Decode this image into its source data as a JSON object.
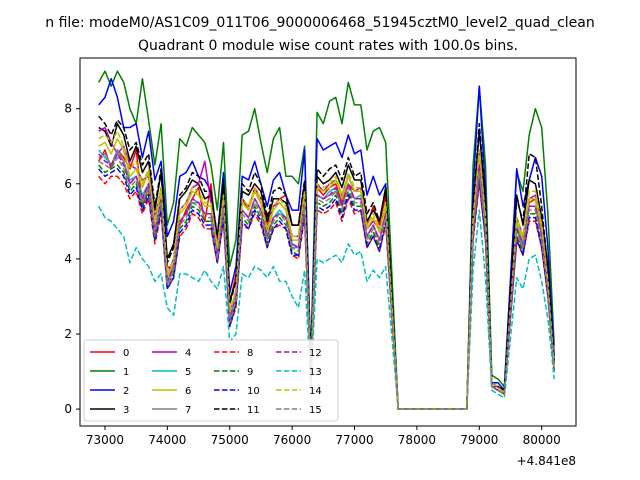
{
  "figure": {
    "suptitle": "n file: modeM0/AS1C09_011T06_9000006468_51945cztM0_level2_quad_clean",
    "offset_label": "+4.841e8"
  },
  "chart_data": {
    "type": "line",
    "title": "Quadrant 0 module wise count rates with 100.0s bins.",
    "xlabel": "",
    "ylabel": "",
    "x_offset": 484100000,
    "xlim": [
      72600,
      80550
    ],
    "ylim": [
      -0.45,
      9.35
    ],
    "x_ticks": [
      73000,
      74000,
      75000,
      76000,
      77000,
      78000,
      79000,
      80000
    ],
    "x_tick_labels": [
      "73000",
      "74000",
      "75000",
      "76000",
      "77000",
      "78000",
      "79000",
      "80000"
    ],
    "y_ticks": [
      0,
      2,
      4,
      6,
      8
    ],
    "y_tick_labels": [
      "0",
      "2",
      "4",
      "6",
      "8"
    ],
    "grid": false,
    "legend_placement": "lower-left",
    "legend_columns": 4,
    "x": [
      72900,
      73000,
      73100,
      73200,
      73300,
      73400,
      73500,
      73600,
      73700,
      73800,
      73900,
      74000,
      74100,
      74200,
      74300,
      74400,
      74500,
      74600,
      74700,
      74800,
      74900,
      75000,
      75100,
      75200,
      75300,
      75400,
      75500,
      75600,
      75700,
      75800,
      75900,
      76000,
      76100,
      76200,
      76300,
      76400,
      76500,
      76600,
      76700,
      76800,
      76900,
      77000,
      77100,
      77200,
      77300,
      77400,
      77500,
      77700,
      78800,
      78900,
      79000,
      79100,
      79200,
      79300,
      79400,
      79600,
      79700,
      79800,
      79900,
      80000,
      80100,
      80200
    ],
    "series": [
      {
        "name": "0",
        "color": "#ff0000",
        "dash": "solid",
        "values": [
          6.6,
          6.9,
          6.4,
          6.9,
          6.7,
          6.4,
          6.9,
          5.4,
          5.9,
          5.0,
          5.9,
          3.8,
          3.7,
          4.9,
          5.3,
          5.6,
          5.9,
          5.0,
          6.0,
          4.3,
          5.9,
          2.8,
          3.6,
          5.6,
          5.3,
          5.9,
          5.6,
          4.9,
          5.4,
          5.6,
          5.7,
          4.9,
          4.9,
          5.6,
          0.8,
          5.9,
          5.7,
          5.9,
          6.0,
          5.5,
          6.0,
          5.8,
          5.8,
          4.9,
          5.4,
          4.9,
          5.7,
          0.0,
          0.0,
          5.0,
          6.6,
          5.0,
          0.7,
          0.6,
          0.5,
          4.5,
          4.4,
          5.5,
          5.6,
          4.6,
          3.6,
          1.2
        ]
      },
      {
        "name": "1",
        "color": "#008000",
        "dash": "solid",
        "values": [
          8.7,
          9.0,
          8.6,
          9.0,
          8.7,
          8.0,
          7.6,
          8.8,
          7.7,
          6.5,
          7.6,
          4.9,
          5.5,
          7.2,
          7.0,
          7.5,
          7.3,
          7.1,
          6.5,
          5.3,
          7.1,
          3.8,
          4.5,
          7.3,
          7.4,
          8.0,
          7.1,
          6.3,
          7.2,
          7.5,
          6.2,
          6.2,
          6.0,
          7.0,
          1.3,
          7.9,
          7.6,
          8.2,
          8.3,
          7.6,
          8.7,
          8.1,
          8.1,
          6.9,
          7.4,
          7.5,
          7.1,
          0.0,
          0.0,
          6.5,
          8.6,
          6.5,
          0.9,
          0.8,
          0.6,
          6.3,
          5.8,
          7.3,
          8.0,
          7.5,
          5.2,
          1.7
        ]
      },
      {
        "name": "2",
        "color": "#0000ff",
        "dash": "solid",
        "values": [
          8.1,
          8.3,
          8.8,
          8.3,
          7.5,
          7.5,
          7.6,
          6.7,
          7.4,
          6.1,
          6.6,
          4.6,
          5.0,
          6.2,
          6.3,
          6.6,
          6.2,
          6.1,
          5.8,
          4.6,
          6.3,
          3.1,
          3.8,
          6.2,
          6.1,
          6.6,
          6.0,
          5.4,
          6.1,
          6.3,
          5.7,
          5.3,
          5.3,
          6.9,
          1.2,
          7.2,
          6.9,
          7.0,
          7.1,
          6.7,
          7.3,
          6.8,
          6.9,
          5.7,
          6.2,
          5.7,
          6.0,
          0.0,
          0.0,
          5.9,
          8.6,
          5.8,
          0.7,
          0.7,
          0.5,
          6.4,
          5.4,
          6.1,
          6.7,
          6.2,
          4.3,
          1.4
        ]
      },
      {
        "name": "3",
        "color": "#000000",
        "dash": "solid",
        "values": [
          7.5,
          7.4,
          7.0,
          7.6,
          7.3,
          6.6,
          7.0,
          6.3,
          6.6,
          5.3,
          6.3,
          4.0,
          4.4,
          5.6,
          5.8,
          6.1,
          6.0,
          5.6,
          5.7,
          4.5,
          6.0,
          2.9,
          3.4,
          5.8,
          5.7,
          6.0,
          5.8,
          5.0,
          5.6,
          5.6,
          5.5,
          4.9,
          4.9,
          6.0,
          1.0,
          6.2,
          6.0,
          6.1,
          6.3,
          5.9,
          6.5,
          6.1,
          6.1,
          5.0,
          5.3,
          5.0,
          5.9,
          0.0,
          0.0,
          5.4,
          7.4,
          5.5,
          0.7,
          0.6,
          0.5,
          5.7,
          4.9,
          6.1,
          6.0,
          5.1,
          3.8,
          1.2
        ]
      },
      {
        "name": "4",
        "color": "#bf00bf",
        "dash": "solid",
        "values": [
          7.4,
          7.5,
          7.1,
          6.8,
          7.0,
          6.5,
          6.4,
          6.1,
          6.2,
          5.1,
          5.8,
          3.6,
          4.0,
          5.3,
          5.5,
          5.9,
          6.0,
          6.6,
          5.5,
          4.4,
          5.5,
          2.6,
          3.1,
          5.6,
          5.4,
          5.8,
          5.5,
          4.8,
          5.4,
          5.5,
          5.3,
          4.6,
          4.6,
          5.8,
          0.9,
          6.0,
          5.8,
          6.0,
          6.1,
          5.7,
          6.2,
          5.8,
          5.9,
          4.8,
          5.0,
          4.8,
          5.4,
          0.0,
          0.0,
          5.1,
          6.8,
          5.2,
          0.7,
          0.6,
          0.4,
          5.1,
          4.6,
          5.6,
          5.7,
          4.9,
          3.4,
          1.1
        ]
      },
      {
        "name": "5",
        "color": "#00bfbf",
        "dash": "solid",
        "values": [
          6.9,
          6.7,
          6.5,
          6.8,
          6.6,
          6.1,
          6.2,
          5.7,
          6.0,
          4.7,
          5.6,
          3.4,
          3.8,
          5.0,
          5.2,
          5.6,
          5.5,
          5.2,
          5.2,
          4.1,
          5.4,
          2.3,
          3.0,
          5.3,
          5.1,
          5.6,
          5.3,
          4.6,
          5.1,
          5.3,
          5.1,
          4.4,
          4.3,
          5.5,
          0.8,
          5.7,
          5.6,
          5.8,
          5.9,
          5.4,
          6.0,
          5.6,
          5.7,
          4.6,
          4.9,
          4.5,
          5.2,
          0.0,
          0.0,
          4.8,
          6.5,
          4.8,
          0.6,
          0.6,
          0.4,
          4.9,
          4.4,
          5.4,
          5.4,
          4.6,
          3.2,
          1.0
        ]
      },
      {
        "name": "6",
        "color": "#bfbf00",
        "dash": "solid",
        "values": [
          7.0,
          7.1,
          6.8,
          7.2,
          6.9,
          6.2,
          6.4,
          5.9,
          6.3,
          4.9,
          5.8,
          3.5,
          3.9,
          5.2,
          5.4,
          5.8,
          5.7,
          5.4,
          5.4,
          4.3,
          5.6,
          2.5,
          3.1,
          5.5,
          5.3,
          5.8,
          5.5,
          4.7,
          5.3,
          5.5,
          5.3,
          4.5,
          4.5,
          5.7,
          0.9,
          5.9,
          5.8,
          5.9,
          6.1,
          5.6,
          6.2,
          5.8,
          5.8,
          4.8,
          5.1,
          4.7,
          5.4,
          0.0,
          0.0,
          5.0,
          6.7,
          5.0,
          0.7,
          0.6,
          0.4,
          5.0,
          4.5,
          5.6,
          5.6,
          4.8,
          3.3,
          1.1
        ]
      },
      {
        "name": "7",
        "color": "#808080",
        "dash": "solid",
        "values": [
          6.7,
          6.8,
          6.5,
          6.9,
          6.6,
          6.0,
          6.2,
          5.6,
          6.0,
          4.7,
          5.5,
          3.4,
          3.7,
          5.0,
          5.2,
          5.5,
          5.5,
          5.2,
          5.2,
          4.1,
          5.4,
          2.4,
          2.9,
          5.3,
          5.1,
          5.6,
          5.3,
          4.5,
          5.1,
          5.2,
          5.1,
          4.3,
          4.3,
          5.5,
          0.8,
          5.7,
          5.6,
          5.7,
          5.8,
          5.4,
          6.0,
          5.6,
          5.6,
          4.6,
          4.9,
          4.5,
          5.2,
          0.0,
          0.0,
          4.8,
          6.4,
          4.8,
          0.6,
          0.6,
          0.4,
          4.8,
          4.3,
          5.4,
          5.4,
          4.6,
          3.2,
          1.0
        ]
      },
      {
        "name": "8",
        "color": "#ff0000",
        "dash": "dashed",
        "values": [
          6.2,
          6.0,
          6.2,
          6.2,
          6.0,
          5.6,
          5.8,
          5.2,
          5.6,
          4.4,
          5.2,
          3.2,
          3.5,
          4.6,
          4.8,
          5.2,
          5.1,
          4.8,
          4.8,
          3.9,
          5.0,
          2.2,
          2.7,
          4.9,
          4.8,
          5.2,
          4.9,
          4.3,
          4.8,
          4.9,
          4.8,
          4.1,
          4.0,
          5.1,
          0.8,
          5.3,
          5.2,
          5.3,
          5.5,
          5.0,
          5.6,
          5.2,
          5.3,
          4.3,
          4.6,
          4.2,
          4.9,
          0.0,
          0.0,
          4.5,
          6.0,
          4.5,
          0.6,
          0.5,
          0.4,
          4.5,
          4.1,
          5.0,
          5.0,
          4.3,
          3.0,
          1.0
        ]
      },
      {
        "name": "9",
        "color": "#008000",
        "dash": "dashed",
        "values": [
          6.5,
          6.3,
          6.4,
          6.5,
          6.3,
          5.8,
          6.0,
          5.4,
          5.8,
          4.5,
          5.4,
          3.3,
          3.6,
          4.8,
          5.0,
          5.4,
          5.3,
          5.0,
          5.0,
          4.0,
          5.2,
          2.3,
          2.8,
          5.1,
          4.9,
          5.4,
          5.1,
          4.4,
          4.9,
          5.1,
          4.9,
          4.2,
          4.1,
          5.3,
          0.8,
          5.5,
          5.4,
          5.5,
          5.7,
          5.2,
          5.8,
          5.4,
          5.4,
          4.4,
          4.7,
          4.3,
          5.1,
          0.0,
          0.0,
          4.6,
          6.2,
          4.6,
          0.6,
          0.5,
          0.4,
          4.6,
          4.2,
          5.2,
          5.2,
          4.4,
          3.1,
          1.0
        ]
      },
      {
        "name": "10",
        "color": "#0000ff",
        "dash": "dashed",
        "values": [
          6.4,
          6.2,
          6.3,
          6.4,
          6.2,
          5.7,
          5.9,
          5.3,
          5.7,
          4.5,
          5.3,
          3.2,
          3.5,
          4.7,
          4.9,
          5.3,
          5.2,
          4.9,
          4.9,
          3.9,
          5.1,
          2.2,
          2.8,
          5.0,
          4.8,
          5.3,
          5.0,
          4.3,
          4.8,
          5.0,
          4.8,
          4.1,
          4.1,
          5.2,
          0.8,
          5.4,
          5.3,
          5.4,
          5.6,
          5.1,
          5.7,
          5.3,
          5.3,
          4.3,
          4.6,
          4.2,
          5.0,
          0.0,
          0.0,
          4.6,
          6.1,
          4.5,
          0.6,
          0.5,
          0.4,
          4.5,
          4.1,
          5.1,
          5.1,
          4.3,
          3.0,
          1.0
        ]
      },
      {
        "name": "11",
        "color": "#000000",
        "dash": "dashed",
        "values": [
          7.8,
          7.6,
          7.3,
          7.7,
          7.5,
          6.9,
          7.1,
          6.5,
          6.8,
          5.4,
          6.4,
          3.9,
          4.3,
          5.7,
          5.9,
          6.3,
          6.2,
          5.8,
          5.8,
          4.6,
          6.1,
          2.8,
          3.4,
          6.0,
          5.8,
          6.3,
          6.0,
          5.1,
          5.8,
          5.9,
          5.7,
          4.9,
          4.9,
          6.1,
          1.0,
          6.4,
          6.2,
          6.4,
          6.5,
          6.1,
          6.7,
          6.2,
          6.3,
          5.2,
          5.5,
          5.0,
          5.9,
          0.0,
          0.0,
          5.4,
          7.6,
          5.5,
          0.7,
          0.6,
          0.5,
          5.6,
          5.0,
          6.8,
          6.7,
          5.4,
          3.7,
          1.2
        ]
      },
      {
        "name": "12",
        "color": "#bf00bf",
        "dash": "dashed",
        "values": [
          6.8,
          6.6,
          6.5,
          6.8,
          6.5,
          6.0,
          6.2,
          5.6,
          6.0,
          4.7,
          5.6,
          3.4,
          3.8,
          5.0,
          5.2,
          5.6,
          5.5,
          5.2,
          5.2,
          4.1,
          5.4,
          2.4,
          3.0,
          5.3,
          5.1,
          5.6,
          5.3,
          4.6,
          5.1,
          5.2,
          5.1,
          4.4,
          4.3,
          5.5,
          0.8,
          5.7,
          5.6,
          5.7,
          5.9,
          5.4,
          6.0,
          5.6,
          5.6,
          4.6,
          4.9,
          4.5,
          5.2,
          0.0,
          0.0,
          4.8,
          6.5,
          4.8,
          0.6,
          0.6,
          0.4,
          4.8,
          4.4,
          5.4,
          5.4,
          4.6,
          3.2,
          1.0
        ]
      },
      {
        "name": "13",
        "color": "#00bfbf",
        "dash": "dashed",
        "values": [
          5.4,
          5.1,
          5.0,
          4.8,
          4.6,
          3.9,
          4.3,
          4.0,
          3.8,
          3.4,
          3.6,
          2.7,
          2.5,
          3.6,
          3.6,
          3.5,
          3.4,
          3.7,
          3.4,
          3.2,
          3.8,
          1.8,
          2.0,
          3.6,
          3.5,
          3.8,
          3.7,
          3.5,
          3.8,
          3.4,
          3.4,
          3.0,
          2.7,
          3.7,
          0.6,
          4.0,
          3.9,
          4.0,
          4.1,
          3.9,
          4.4,
          4.1,
          4.2,
          3.4,
          3.7,
          3.5,
          3.8,
          0.0,
          0.0,
          3.7,
          5.3,
          3.5,
          0.5,
          0.4,
          0.3,
          3.5,
          3.2,
          4.0,
          4.1,
          3.4,
          2.4,
          0.8
        ]
      },
      {
        "name": "14",
        "color": "#bfbf00",
        "dash": "dashed",
        "values": [
          7.2,
          7.3,
          7.1,
          7.4,
          7.0,
          6.4,
          6.6,
          6.0,
          6.4,
          5.0,
          5.9,
          3.6,
          4.0,
          5.3,
          5.5,
          5.9,
          5.8,
          5.5,
          5.5,
          4.3,
          5.7,
          2.6,
          3.2,
          5.6,
          5.4,
          5.9,
          5.6,
          4.8,
          5.4,
          5.6,
          5.4,
          4.6,
          4.6,
          5.8,
          0.9,
          6.0,
          5.9,
          6.0,
          6.2,
          5.7,
          6.3,
          5.9,
          5.9,
          4.9,
          5.2,
          4.8,
          5.5,
          0.0,
          0.0,
          5.1,
          6.9,
          5.1,
          0.7,
          0.6,
          0.4,
          5.1,
          4.6,
          5.8,
          5.8,
          4.9,
          3.4,
          1.1
        ]
      },
      {
        "name": "15",
        "color": "#808080",
        "dash": "dashed",
        "values": [
          6.6,
          6.5,
          6.4,
          6.7,
          6.4,
          5.9,
          6.1,
          5.5,
          5.9,
          4.6,
          5.5,
          3.3,
          3.7,
          4.9,
          5.1,
          5.5,
          5.4,
          5.1,
          5.1,
          4.0,
          5.3,
          2.3,
          2.9,
          5.2,
          5.0,
          5.5,
          5.2,
          4.5,
          5.0,
          5.2,
          5.0,
          4.3,
          4.2,
          5.4,
          0.8,
          5.6,
          5.5,
          5.6,
          5.8,
          5.3,
          5.9,
          5.5,
          5.5,
          4.5,
          4.8,
          4.4,
          5.1,
          0.0,
          0.0,
          4.7,
          6.3,
          4.7,
          0.6,
          0.5,
          0.4,
          4.7,
          4.3,
          5.3,
          5.3,
          4.5,
          3.1,
          1.0
        ]
      }
    ]
  }
}
